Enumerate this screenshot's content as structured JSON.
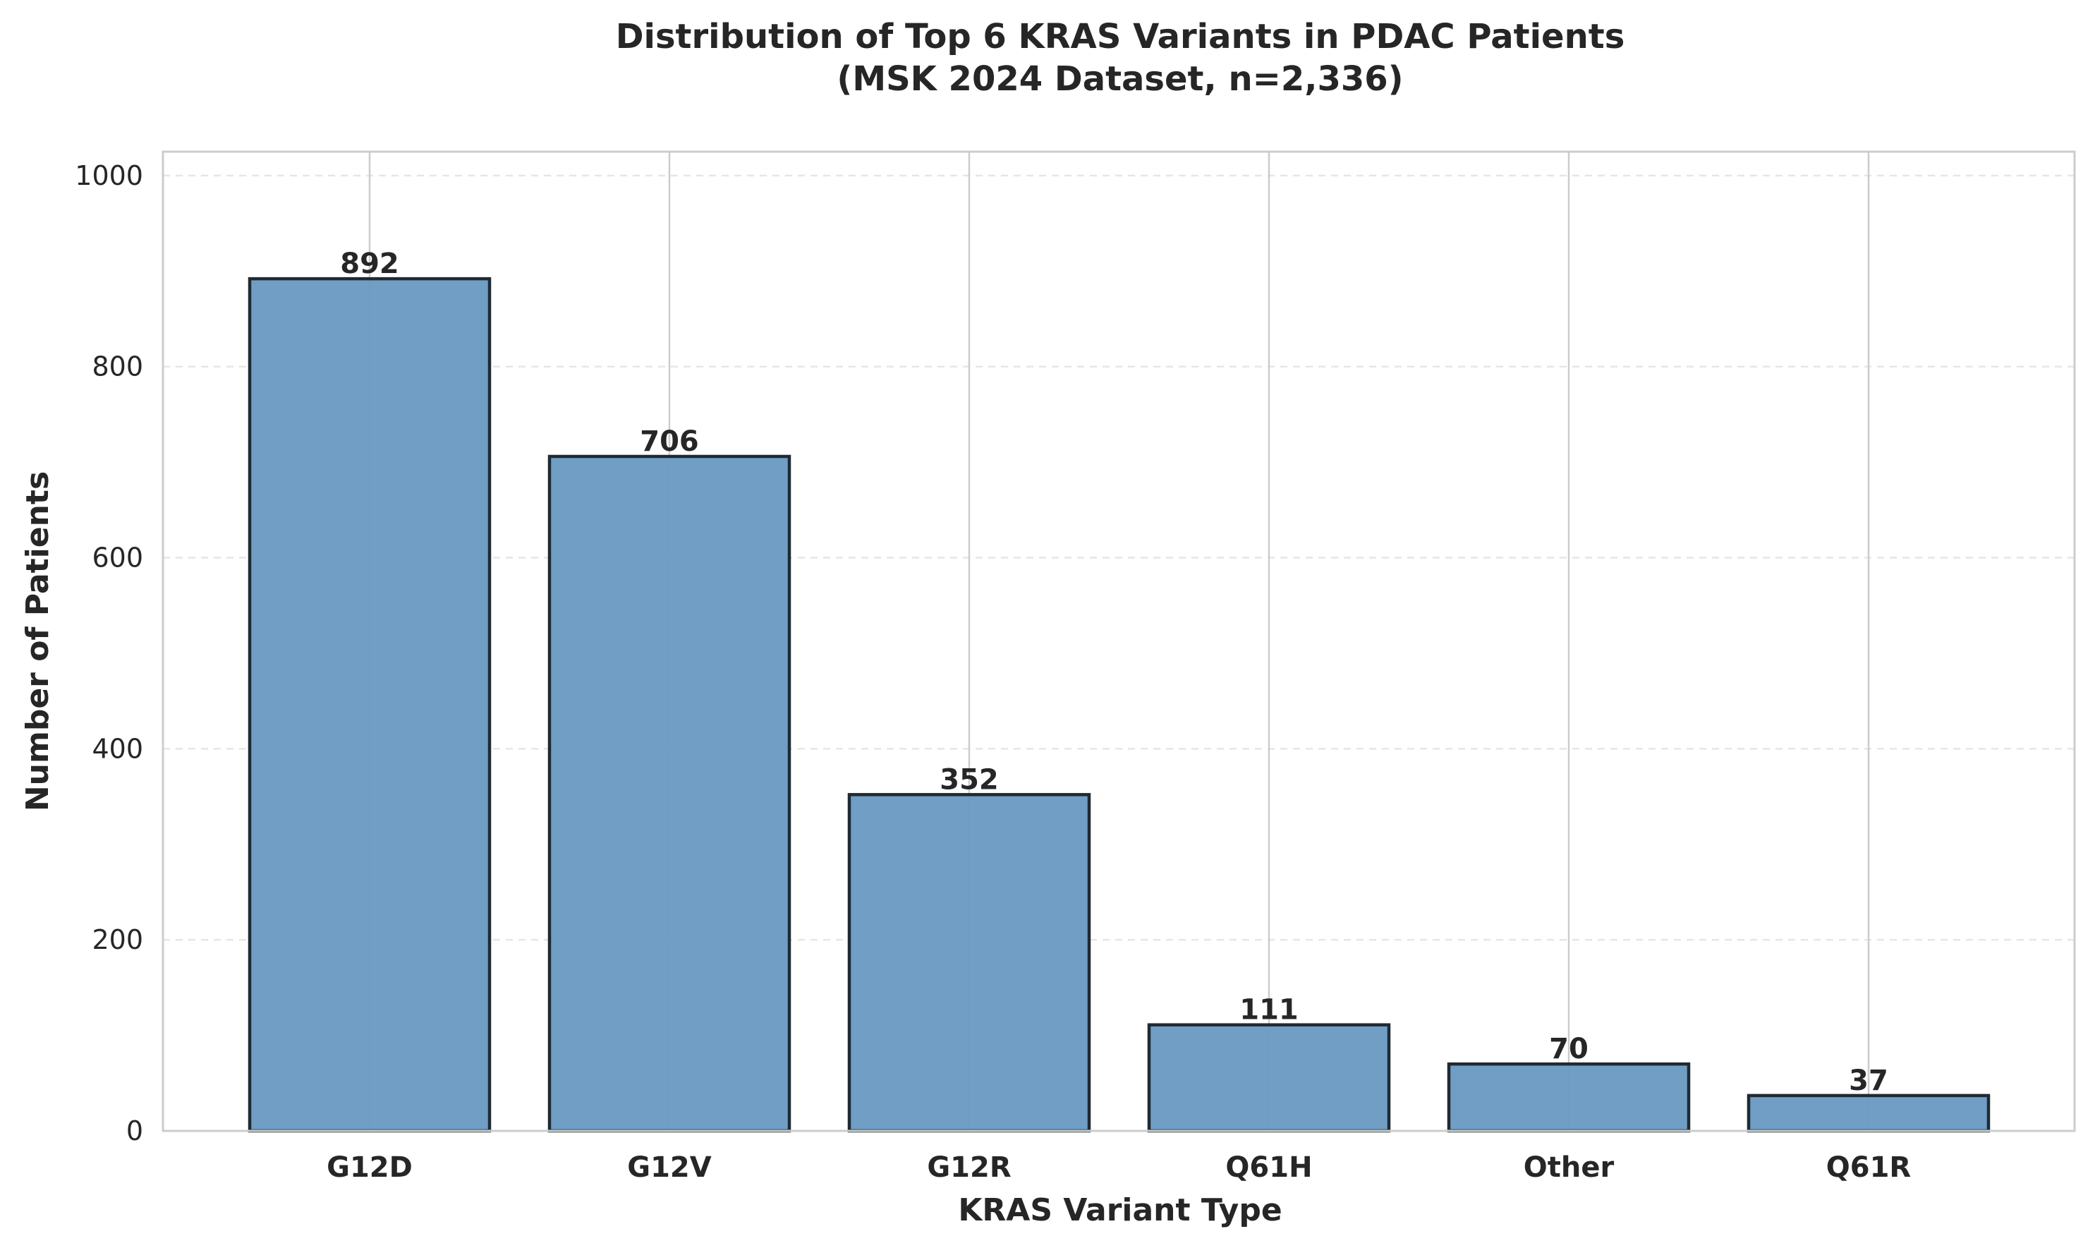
{
  "chart_data": {
    "type": "bar",
    "title": "Distribution of Top 6 KRAS Variants in PDAC Patients",
    "subtitle": "(MSK 2024 Dataset, n=2,336)",
    "xlabel": "KRAS Variant Type",
    "ylabel": "Number of Patients",
    "categories": [
      "G12D",
      "G12V",
      "G12R",
      "Q61H",
      "Other",
      "Q61R"
    ],
    "values": [
      892,
      706,
      352,
      111,
      70,
      37
    ],
    "ylim": [
      0,
      1025
    ],
    "yticks": [
      0,
      200,
      400,
      600,
      800,
      1000
    ],
    "grid": true,
    "legend": "none",
    "colors": {
      "bar_fill": "#6a9ac3",
      "bar_edge": "#1f2a33",
      "grid_x": "#cccccc",
      "grid_y": "#e6e6e6",
      "frame": "#cccccc",
      "text": "#262626"
    }
  }
}
